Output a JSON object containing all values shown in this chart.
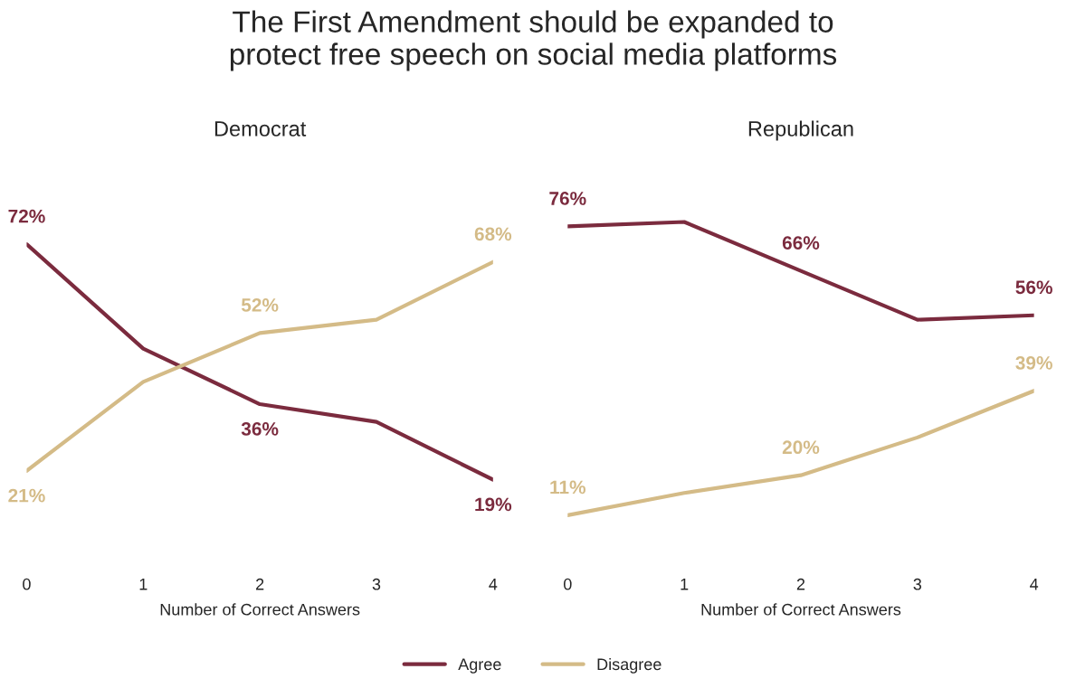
{
  "chart_data": [
    {
      "type": "line",
      "title": "The First Amendment should be expanded to\nprotect free speech on social media platforms",
      "subtitle": "Democrat",
      "xlabel": "Number of Correct Answers",
      "x": [
        0,
        1,
        2,
        3,
        4
      ],
      "xlim": [
        0,
        4
      ],
      "xticks": [
        0,
        1,
        2,
        3,
        4
      ],
      "grid": false,
      "legend": "bottom",
      "tick_labels": "x",
      "series": [
        {
          "name": "Agree",
          "color": "#7b2b3e",
          "values": [
            72,
            48.5,
            36,
            32,
            19
          ],
          "value_labels": [
            "72%",
            null,
            "36%",
            null,
            "19%"
          ]
        },
        {
          "name": "Disagree",
          "color": "#d4bb87",
          "values": [
            21,
            41,
            52,
            55,
            68
          ],
          "value_labels": [
            "21%",
            null,
            "52%",
            null,
            "68%"
          ]
        }
      ]
    },
    {
      "type": "line",
      "subtitle": "Republican",
      "xlabel": "Number of Correct Answers",
      "x": [
        0,
        1,
        2,
        3,
        4
      ],
      "xlim": [
        0,
        4
      ],
      "xticks": [
        0,
        1,
        2,
        3,
        4
      ],
      "grid": false,
      "tick_labels": "x",
      "series": [
        {
          "color": "#7b2b3e",
          "values": [
            76,
            77,
            66,
            55,
            56
          ],
          "value_labels": [
            "76%",
            null,
            "66%",
            null,
            "56%"
          ]
        },
        {
          "color": "#d4bb87",
          "values": [
            11,
            16,
            20,
            28.5,
            39
          ],
          "value_labels": [
            "11%",
            null,
            "20%",
            null,
            "39%"
          ]
        }
      ]
    }
  ]
}
